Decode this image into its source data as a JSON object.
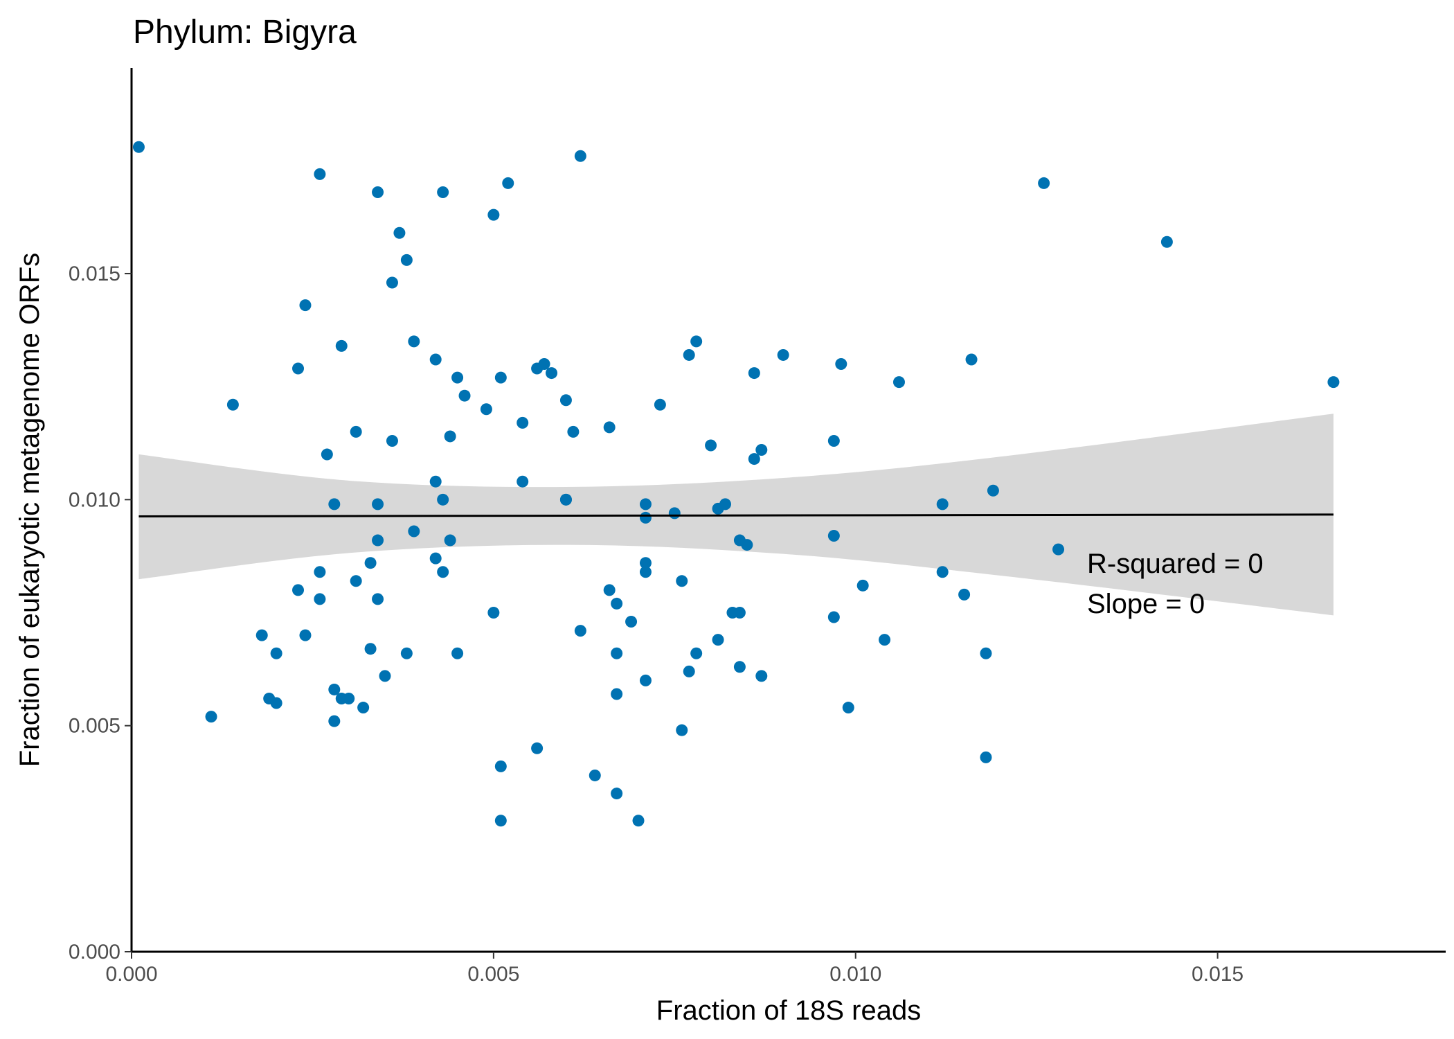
{
  "chart_data": {
    "type": "scatter",
    "title": "Phylum:  Bigyra",
    "xlabel": "Fraction of 18S reads",
    "ylabel": "Fraction of eukaryotic metagenome ORFs",
    "xlim": [
      0,
      0.01815
    ],
    "ylim": [
      0,
      0.01955
    ],
    "xticks": [
      0.0,
      0.005,
      0.01,
      0.015
    ],
    "yticks": [
      0.0,
      0.005,
      0.01,
      0.015
    ],
    "xtick_labels": [
      "0.000",
      "0.005",
      "0.010",
      "0.015"
    ],
    "ytick_labels": [
      "0.000",
      "0.005",
      "0.010",
      "0.015"
    ],
    "grid": false,
    "point_color": "#0072B2",
    "line_color": "#000000",
    "ribbon_color": "#bebebe",
    "annotations": [
      "R-squared =  0",
      "Slope =  0"
    ],
    "trend_line": {
      "x": [
        0.0001,
        0.0166
      ],
      "y": [
        0.00963,
        0.00967
      ]
    },
    "confidence_band": {
      "x": [
        0.0001,
        0.003,
        0.006,
        0.009,
        0.012,
        0.0166
      ],
      "upper": [
        0.011,
        0.01042,
        0.01028,
        0.01048,
        0.01095,
        0.0119
      ],
      "lower": [
        0.00824,
        0.00882,
        0.009,
        0.0088,
        0.00832,
        0.00744
      ]
    },
    "points": [
      [
        0.0001,
        0.0178
      ],
      [
        0.0026,
        0.0172
      ],
      [
        0.0034,
        0.0168
      ],
      [
        0.0043,
        0.0168
      ],
      [
        0.0052,
        0.017
      ],
      [
        0.0062,
        0.0176
      ],
      [
        0.0126,
        0.017
      ],
      [
        0.0143,
        0.0157
      ],
      [
        0.0166,
        0.0126
      ],
      [
        0.0037,
        0.0159
      ],
      [
        0.0038,
        0.0153
      ],
      [
        0.0036,
        0.0148
      ],
      [
        0.005,
        0.0163
      ],
      [
        0.0024,
        0.0143
      ],
      [
        0.0029,
        0.0134
      ],
      [
        0.0039,
        0.0135
      ],
      [
        0.0042,
        0.0131
      ],
      [
        0.0023,
        0.0129
      ],
      [
        0.0045,
        0.0127
      ],
      [
        0.0051,
        0.0127
      ],
      [
        0.0056,
        0.0129
      ],
      [
        0.0057,
        0.013
      ],
      [
        0.0058,
        0.0128
      ],
      [
        0.0077,
        0.0132
      ],
      [
        0.0078,
        0.0135
      ],
      [
        0.009,
        0.0132
      ],
      [
        0.0098,
        0.013
      ],
      [
        0.0086,
        0.0128
      ],
      [
        0.0106,
        0.0126
      ],
      [
        0.0116,
        0.0131
      ],
      [
        0.0046,
        0.0123
      ],
      [
        0.0049,
        0.012
      ],
      [
        0.006,
        0.0122
      ],
      [
        0.0073,
        0.0121
      ],
      [
        0.0014,
        0.0121
      ],
      [
        0.0054,
        0.0117
      ],
      [
        0.0061,
        0.0115
      ],
      [
        0.0066,
        0.0116
      ],
      [
        0.0031,
        0.0115
      ],
      [
        0.0036,
        0.0113
      ],
      [
        0.0044,
        0.0114
      ],
      [
        0.008,
        0.0112
      ],
      [
        0.0087,
        0.0111
      ],
      [
        0.0086,
        0.0109
      ],
      [
        0.0097,
        0.0113
      ],
      [
        0.0027,
        0.011
      ],
      [
        0.0042,
        0.0104
      ],
      [
        0.0054,
        0.0104
      ],
      [
        0.0043,
        0.01
      ],
      [
        0.006,
        0.01
      ],
      [
        0.006,
        0.01
      ],
      [
        0.0071,
        0.0099
      ],
      [
        0.0071,
        0.0096
      ],
      [
        0.0075,
        0.0097
      ],
      [
        0.0081,
        0.0098
      ],
      [
        0.0082,
        0.0099
      ],
      [
        0.0112,
        0.0099
      ],
      [
        0.0119,
        0.0102
      ],
      [
        0.0028,
        0.0099
      ],
      [
        0.0034,
        0.0099
      ],
      [
        0.0034,
        0.0091
      ],
      [
        0.0039,
        0.0093
      ],
      [
        0.0044,
        0.0091
      ],
      [
        0.0084,
        0.0091
      ],
      [
        0.0085,
        0.009
      ],
      [
        0.0097,
        0.0092
      ],
      [
        0.0128,
        0.0089
      ],
      [
        0.0033,
        0.0086
      ],
      [
        0.0042,
        0.0087
      ],
      [
        0.0043,
        0.0084
      ],
      [
        0.0026,
        0.0084
      ],
      [
        0.0031,
        0.0082
      ],
      [
        0.0023,
        0.008
      ],
      [
        0.0026,
        0.0078
      ],
      [
        0.0034,
        0.0078
      ],
      [
        0.0071,
        0.0086
      ],
      [
        0.0071,
        0.0084
      ],
      [
        0.0076,
        0.0082
      ],
      [
        0.0066,
        0.008
      ],
      [
        0.0067,
        0.0077
      ],
      [
        0.0069,
        0.0073
      ],
      [
        0.0101,
        0.0081
      ],
      [
        0.0112,
        0.0084
      ],
      [
        0.0115,
        0.0079
      ],
      [
        0.005,
        0.0075
      ],
      [
        0.0024,
        0.007
      ],
      [
        0.0018,
        0.007
      ],
      [
        0.002,
        0.0066
      ],
      [
        0.0033,
        0.0067
      ],
      [
        0.0038,
        0.0066
      ],
      [
        0.0045,
        0.0066
      ],
      [
        0.0062,
        0.0071
      ],
      [
        0.0067,
        0.0066
      ],
      [
        0.0078,
        0.0066
      ],
      [
        0.0081,
        0.0069
      ],
      [
        0.0083,
        0.0075
      ],
      [
        0.0084,
        0.0075
      ],
      [
        0.0097,
        0.0074
      ],
      [
        0.0104,
        0.0069
      ],
      [
        0.0118,
        0.0066
      ],
      [
        0.0035,
        0.0061
      ],
      [
        0.0028,
        0.0058
      ],
      [
        0.0029,
        0.0056
      ],
      [
        0.003,
        0.0056
      ],
      [
        0.0019,
        0.0056
      ],
      [
        0.002,
        0.0055
      ],
      [
        0.0032,
        0.0054
      ],
      [
        0.0067,
        0.0057
      ],
      [
        0.0071,
        0.006
      ],
      [
        0.0077,
        0.0062
      ],
      [
        0.0084,
        0.0063
      ],
      [
        0.0087,
        0.0061
      ],
      [
        0.0011,
        0.0052
      ],
      [
        0.0028,
        0.0051
      ],
      [
        0.0056,
        0.0045
      ],
      [
        0.0076,
        0.0049
      ],
      [
        0.0099,
        0.0054
      ],
      [
        0.0051,
        0.0041
      ],
      [
        0.0064,
        0.0039
      ],
      [
        0.0067,
        0.0035
      ],
      [
        0.0051,
        0.0029
      ],
      [
        0.007,
        0.0029
      ],
      [
        0.0118,
        0.0043
      ]
    ]
  }
}
